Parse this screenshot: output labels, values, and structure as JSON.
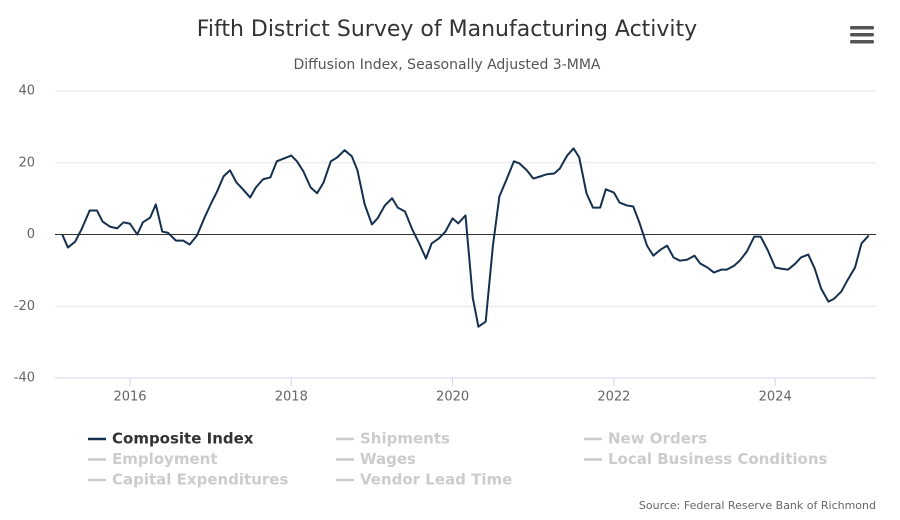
{
  "chart_data": {
    "type": "line",
    "title": "Fifth District Survey of Manufacturing Activity",
    "subtitle": "Diffusion Index, Seasonally Adjusted 3-MMA",
    "source": "Source: Federal Reserve Bank of Richmond",
    "x": [
      2015.16,
      2015.23,
      2015.32,
      2015.4,
      2015.5,
      2015.59,
      2015.66,
      2015.75,
      2015.84,
      2015.92,
      2016.0,
      2016.09,
      2016.16,
      2016.25,
      2016.32,
      2016.4,
      2016.47,
      2016.57,
      2016.66,
      2016.74,
      2016.83,
      2016.92,
      2017.0,
      2017.08,
      2017.16,
      2017.24,
      2017.32,
      2017.4,
      2017.49,
      2017.56,
      2017.65,
      2017.74,
      2017.82,
      2017.91,
      2018.0,
      2018.07,
      2018.15,
      2018.24,
      2018.32,
      2018.4,
      2018.49,
      2018.57,
      2018.66,
      2018.75,
      2018.82,
      2018.91,
      2019.0,
      2019.07,
      2019.16,
      2019.25,
      2019.32,
      2019.41,
      2019.5,
      2019.58,
      2019.67,
      2019.74,
      2019.83,
      2019.91,
      2020.0,
      2020.07,
      2020.16,
      2020.25,
      2020.32,
      2020.41,
      2020.5,
      2020.58,
      2020.67,
      2020.76,
      2020.83,
      2020.92,
      2021.0,
      2021.09,
      2021.17,
      2021.26,
      2021.33,
      2021.42,
      2021.5,
      2021.57,
      2021.66,
      2021.74,
      2021.83,
      2021.9,
      2022.0,
      2022.07,
      2022.16,
      2022.24,
      2022.32,
      2022.41,
      2022.49,
      2022.58,
      2022.66,
      2022.74,
      2022.82,
      2022.91,
      2023.0,
      2023.07,
      2023.16,
      2023.24,
      2023.33,
      2023.4,
      2023.49,
      2023.56,
      2023.65,
      2023.74,
      2023.82,
      2023.91,
      2024.0,
      2024.07,
      2024.16,
      2024.25,
      2024.32,
      2024.41,
      2024.49,
      2024.57,
      2024.66,
      2024.73,
      2024.82,
      2024.9,
      2024.99,
      2025.07,
      2025.16
    ],
    "series": [
      {
        "name": "Composite Index",
        "color": "#15304f",
        "values": [
          0,
          -3.6,
          -2,
          1.5,
          6.7,
          6.7,
          3.6,
          2.2,
          1.7,
          3.4,
          3,
          0,
          3.4,
          4.7,
          8.4,
          0.8,
          0.5,
          -1.7,
          -1.7,
          -2.8,
          -0.3,
          4.5,
          8.4,
          12,
          16.2,
          17.9,
          14.5,
          12.6,
          10.3,
          13.1,
          15.4,
          15.9,
          20.4,
          21.2,
          22,
          20.4,
          17.6,
          13.1,
          11.5,
          14.5,
          20.4,
          21.5,
          23.5,
          21.8,
          17.9,
          8.4,
          2.8,
          4.5,
          8.1,
          10.1,
          7.5,
          6.4,
          1.4,
          -2.2,
          -6.7,
          -2.5,
          -1.1,
          0.8,
          4.5,
          3.1,
          5.3,
          -17.6,
          -25.7,
          -24.3,
          -3.1,
          10.6,
          15.4,
          20.4,
          19.8,
          17.9,
          15.6,
          16.2,
          16.8,
          17,
          18.4,
          22,
          24,
          21.5,
          11.5,
          7.5,
          7.5,
          12.6,
          11.7,
          8.9,
          8.1,
          7.8,
          3.1,
          -3.1,
          -5.9,
          -4.2,
          -3.1,
          -6.4,
          -7.3,
          -7,
          -5.9,
          -8.1,
          -9.2,
          -10.6,
          -9.8,
          -9.8,
          -8.7,
          -7.3,
          -4.7,
          -0.6,
          -0.6,
          -4.5,
          -9.2,
          -9.5,
          -9.8,
          -8.1,
          -6.4,
          -5.6,
          -9.5,
          -15.1,
          -18.7,
          -17.9,
          -15.9,
          -12.6,
          -9.2,
          -2.5,
          -0.3
        ]
      }
    ],
    "hidden_series": [
      "Shipments",
      "New Orders",
      "Employment",
      "Wages",
      "Local Business Conditions",
      "Capital Expenditures",
      "Vendor Lead Time"
    ],
    "hidden_color": "#cccccc",
    "xlim": [
      2015.07,
      2025.25
    ],
    "xticks": [
      2016,
      2018,
      2020,
      2022,
      2024
    ],
    "ylim": [
      -40,
      40
    ],
    "yticks": [
      -40,
      -20,
      0,
      20,
      40
    ],
    "zero_line": 0,
    "grid": true
  }
}
